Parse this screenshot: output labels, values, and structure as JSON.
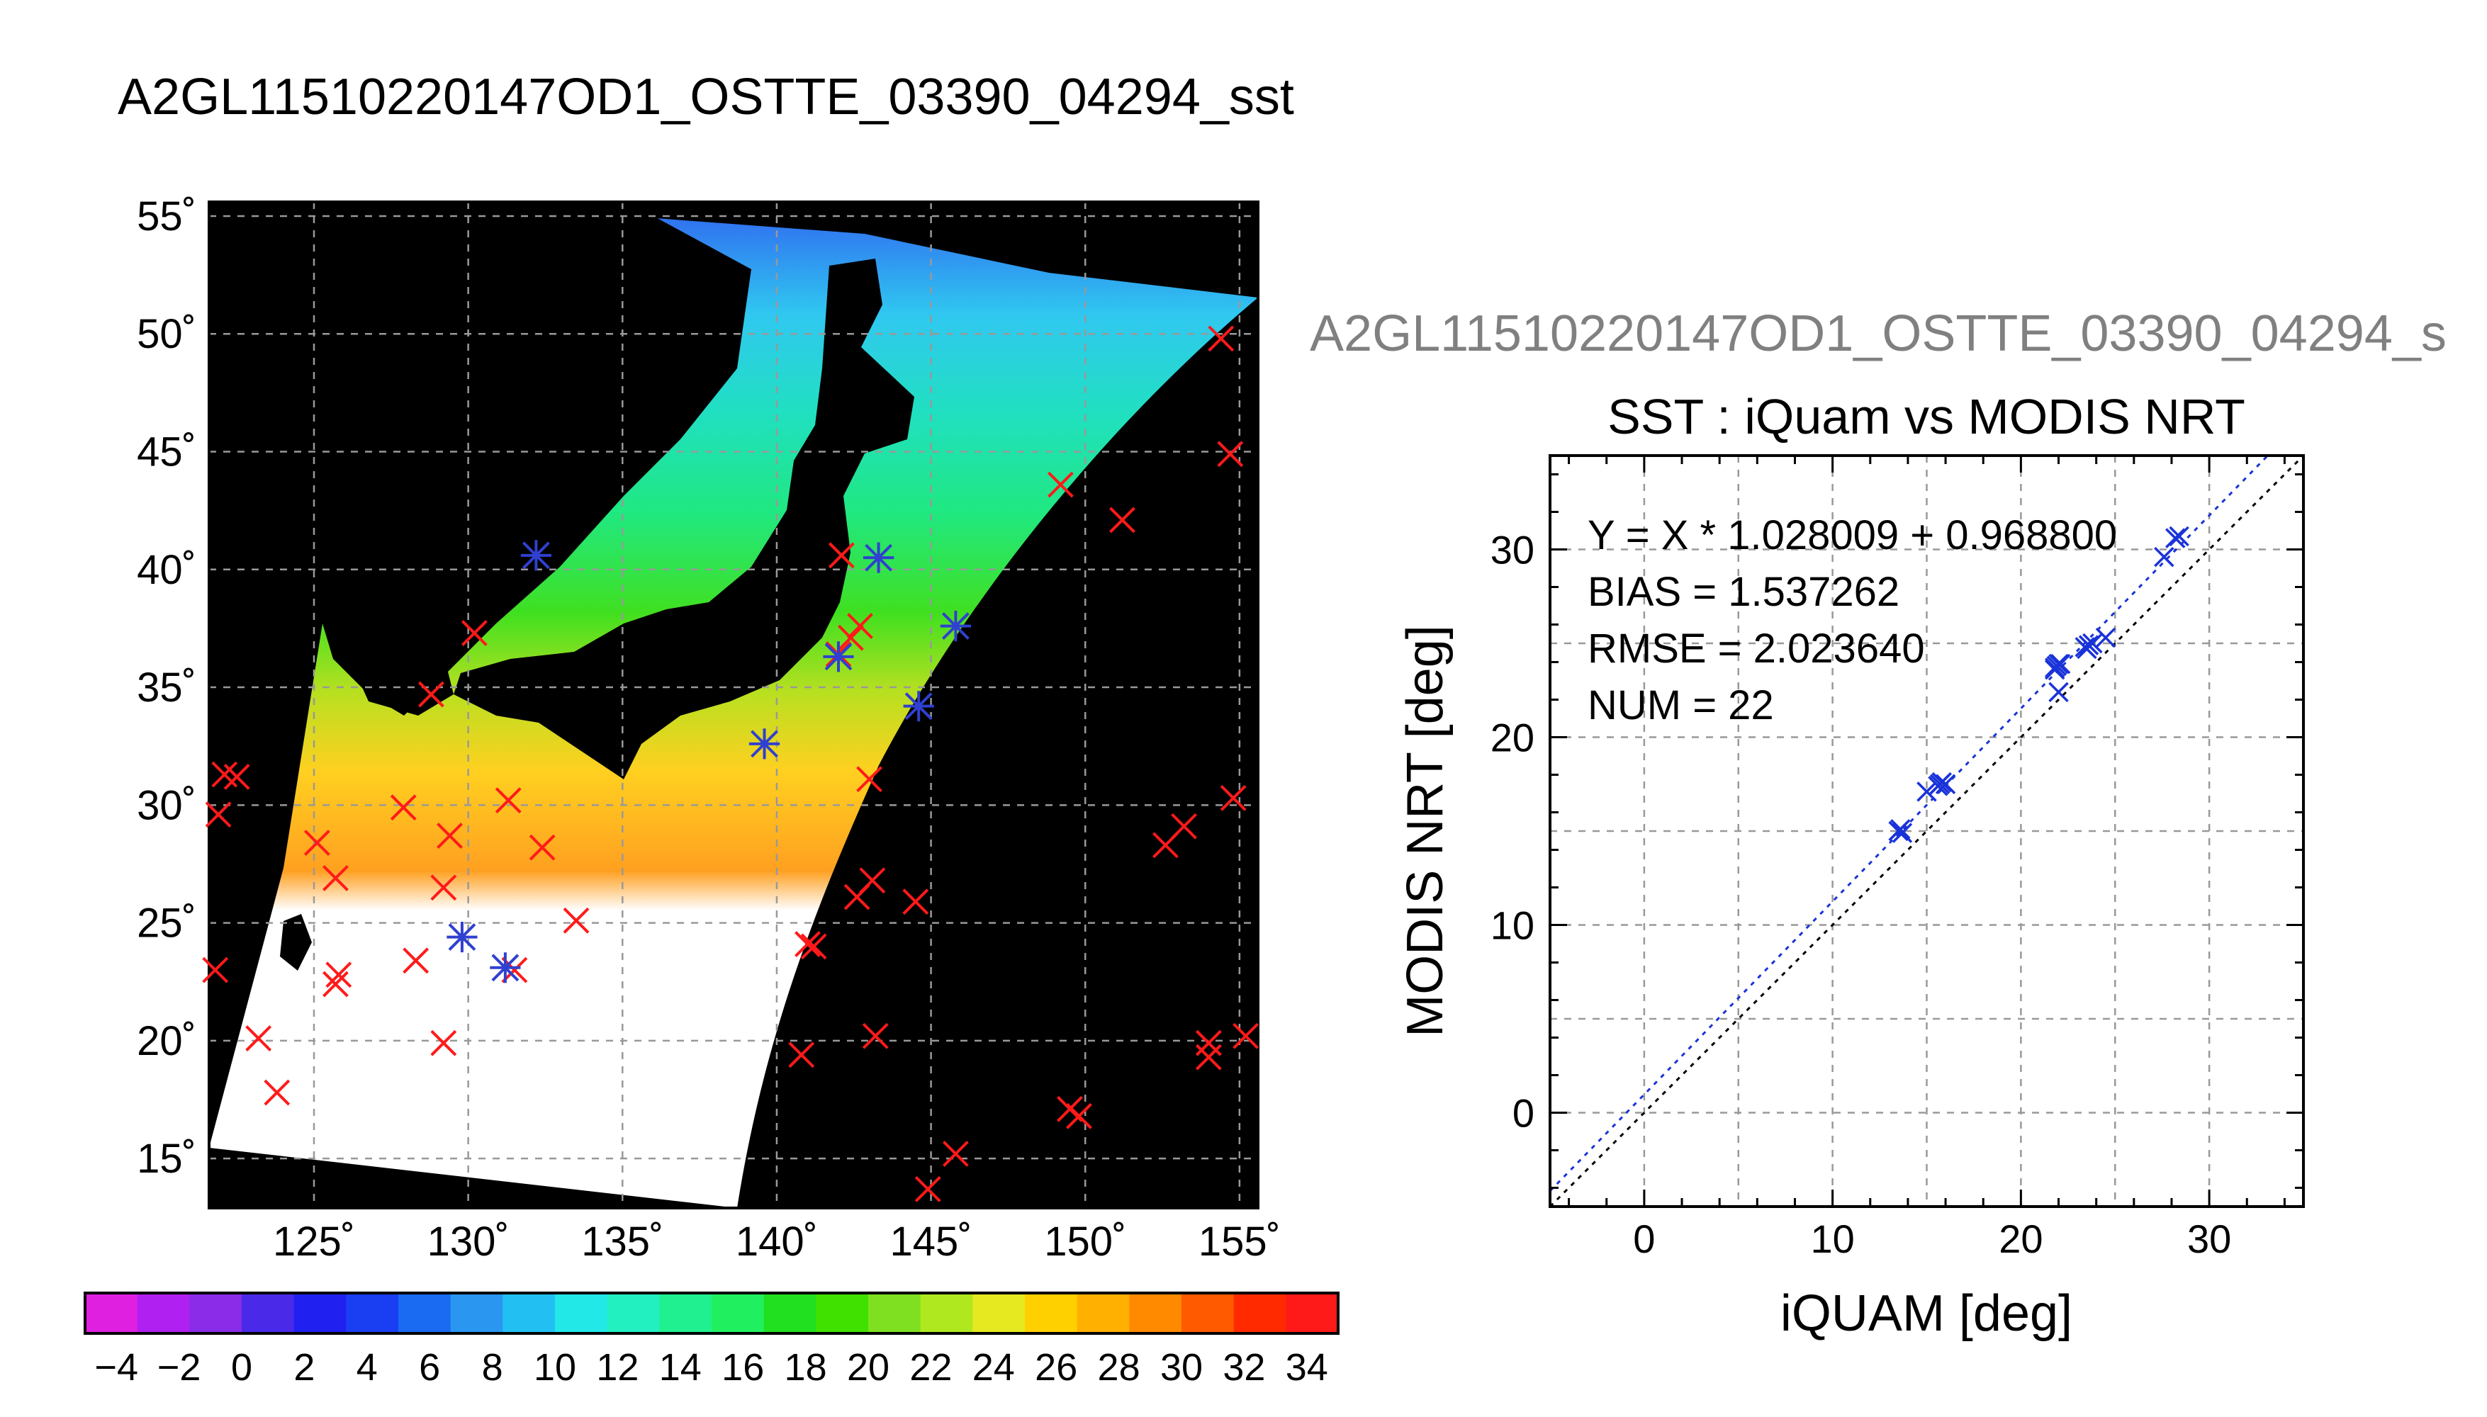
{
  "main_title": "A2GL11510220147OD1_OSTTE_03390_04294_sst",
  "side_title": "A2GL11510220147OD1_OSTTE_03390_04294_s",
  "colors": {
    "map_bg": "#000000",
    "matchup_red": "#ff1a1a",
    "matchup_blue": "#3040d0",
    "fit_line": "#1a33d9",
    "identity_line": "#000000",
    "grid": "#999999"
  },
  "chart_data": [
    {
      "type": "map",
      "name": "sst_map",
      "lon_ticks": [
        125,
        130,
        135,
        140,
        145,
        150,
        155
      ],
      "lat_ticks": [
        55,
        50,
        45,
        40,
        35,
        30,
        25,
        20,
        15
      ],
      "lon_tick_labels": [
        "125˚",
        "130˚",
        "135˚",
        "140˚",
        "145˚",
        "150˚",
        "155˚"
      ],
      "lat_tick_labels": [
        "55˚",
        "50˚",
        "45˚",
        "40˚",
        "35˚",
        "30˚",
        "25˚",
        "20˚",
        "15˚"
      ],
      "lon_range": [
        121.6,
        155.6
      ],
      "lat_range": [
        12.9,
        55.6
      ],
      "grid": true,
      "matchups_red": [
        [
          122.1,
          31.3
        ],
        [
          122.5,
          31.2
        ],
        [
          121.9,
          29.6
        ],
        [
          121.8,
          23.0
        ],
        [
          123.2,
          20.1
        ],
        [
          123.8,
          17.8
        ],
        [
          125.1,
          28.4
        ],
        [
          125.7,
          26.9
        ],
        [
          125.8,
          22.8
        ],
        [
          125.7,
          22.4
        ],
        [
          127.9,
          29.9
        ],
        [
          128.3,
          23.4
        ],
        [
          129.2,
          26.5
        ],
        [
          129.4,
          28.7
        ],
        [
          129.2,
          19.9
        ],
        [
          130.2,
          37.3
        ],
        [
          128.8,
          34.7
        ],
        [
          131.3,
          30.2
        ],
        [
          132.4,
          28.2
        ],
        [
          133.5,
          25.1
        ],
        [
          131.5,
          23.0
        ],
        [
          141.0,
          24.1
        ],
        [
          141.2,
          24.0
        ],
        [
          140.8,
          19.4
        ],
        [
          142.0,
          36.4
        ],
        [
          142.1,
          40.6
        ],
        [
          142.7,
          37.6
        ],
        [
          142.4,
          37.1
        ],
        [
          143.0,
          31.1
        ],
        [
          142.6,
          26.1
        ],
        [
          143.1,
          26.8
        ],
        [
          143.2,
          20.2
        ],
        [
          144.5,
          25.9
        ],
        [
          144.9,
          13.7
        ],
        [
          145.8,
          15.2
        ],
        [
          149.2,
          43.6
        ],
        [
          151.2,
          42.1
        ],
        [
          149.5,
          17.1
        ],
        [
          149.8,
          16.8
        ],
        [
          152.6,
          28.3
        ],
        [
          153.2,
          29.1
        ],
        [
          154.8,
          30.3
        ],
        [
          154.4,
          49.8
        ],
        [
          154.7,
          44.9
        ],
        [
          154.0,
          19.9
        ],
        [
          154.0,
          19.3
        ],
        [
          155.2,
          20.2
        ]
      ],
      "matchups_blue": [
        [
          132.2,
          40.6
        ],
        [
          139.6,
          32.6
        ],
        [
          142.0,
          36.3
        ],
        [
          143.3,
          40.5
        ],
        [
          144.6,
          34.2
        ],
        [
          145.8,
          37.6
        ],
        [
          129.8,
          24.4
        ],
        [
          131.2,
          23.1
        ]
      ],
      "colorbar": {
        "min": -5,
        "max": 35,
        "tick_values": [
          -4,
          -2,
          0,
          2,
          4,
          6,
          8,
          10,
          12,
          14,
          16,
          18,
          20,
          22,
          24,
          26,
          28,
          30,
          32,
          34
        ],
        "tick_labels": [
          "−4",
          "−2",
          "0",
          "2",
          "4",
          "6",
          "8",
          "10",
          "12",
          "14",
          "16",
          "18",
          "20",
          "22",
          "24",
          "26",
          "28",
          "30",
          "32",
          "34"
        ],
        "colors": [
          "#e020e0",
          "#b020f0",
          "#8a2ce8",
          "#4a2ae8",
          "#2020f0",
          "#1a3ef2",
          "#1a6af2",
          "#2a96f0",
          "#22c0f2",
          "#22e8e8",
          "#22f0c0",
          "#20f090",
          "#20f060",
          "#20e020",
          "#40e000",
          "#7ee020",
          "#b0e820",
          "#e6e820",
          "#ffd000",
          "#ffb000",
          "#ff8a00",
          "#ff5a00",
          "#ff2a00",
          "#ff1a1a"
        ]
      }
    },
    {
      "type": "scatter",
      "name": "sst_scatter",
      "title": "SST : iQuam vs MODIS NRT",
      "xlabel": "iQUAM [deg]",
      "ylabel": "MODIS NRT [deg]",
      "xlim": [
        -5,
        35
      ],
      "ylim": [
        -5,
        35
      ],
      "x_ticks": [
        0,
        10,
        20,
        30
      ],
      "y_ticks": [
        0,
        10,
        20,
        30
      ],
      "x_tick_labels": [
        "0",
        "10",
        "20",
        "30"
      ],
      "y_tick_labels": [
        "0",
        "10",
        "20",
        "30"
      ],
      "grid": true,
      "fit": {
        "slope": 1.028009,
        "intercept": 0.9688
      },
      "annotations": [
        "Y = X * 1.028009 + 0.968800",
        "BIAS = 1.537262",
        "RMSE = 2.023640",
        "NUM = 22"
      ],
      "points": [
        [
          13.5,
          15.0
        ],
        [
          13.7,
          14.9
        ],
        [
          15.0,
          17.1
        ],
        [
          15.6,
          17.4
        ],
        [
          15.8,
          17.6
        ],
        [
          16.0,
          17.5
        ],
        [
          21.8,
          23.7
        ],
        [
          21.9,
          23.8
        ],
        [
          22.0,
          23.9
        ],
        [
          21.8,
          23.6
        ],
        [
          22.0,
          22.4
        ],
        [
          23.4,
          24.8
        ],
        [
          23.6,
          24.9
        ],
        [
          23.8,
          25.0
        ],
        [
          24.5,
          25.3
        ],
        [
          27.6,
          29.6
        ],
        [
          28.2,
          30.6
        ],
        [
          28.4,
          30.7
        ],
        [
          22.1,
          23.9
        ],
        [
          23.5,
          24.7
        ],
        [
          15.7,
          17.5
        ],
        [
          13.6,
          15.1
        ]
      ]
    }
  ]
}
